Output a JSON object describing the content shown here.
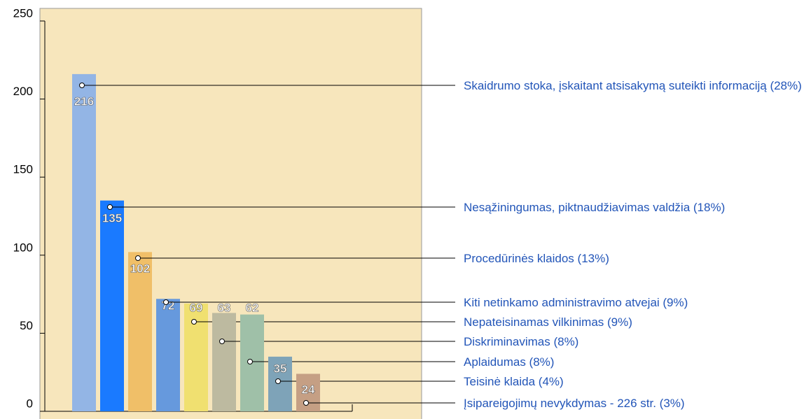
{
  "chart_data": {
    "type": "bar",
    "categories": [
      "Skaidrumo stoka, įskaitant atsisakymą suteikti informaciją (28%)",
      "Nesąžiningumas, piktnaudžiavimas valdžia (18%)",
      "Procedūrinės klaidos (13%)",
      "Kiti netinkamo administravimo atvejai (9%)",
      "Nepateisinamas vilkinimas (9%)",
      "Diskriminavimas (8%)",
      "Aplaidumas (8%)",
      "Teisinė klaida (4%)",
      "Įsipareigojimų nevykdymas - 226 str. (3%)"
    ],
    "values": [
      216,
      135,
      102,
      72,
      69,
      63,
      62,
      35,
      24
    ],
    "colors": [
      "#93b5e5",
      "#1a7aff",
      "#f0bf68",
      "#6699dd",
      "#f0e070",
      "#bdbaa0",
      "#9fc0a8",
      "#7ea3b8",
      "#c59f84"
    ],
    "ylim": [
      0,
      250
    ],
    "yticks": [
      0,
      50,
      100,
      150,
      200,
      250
    ]
  }
}
